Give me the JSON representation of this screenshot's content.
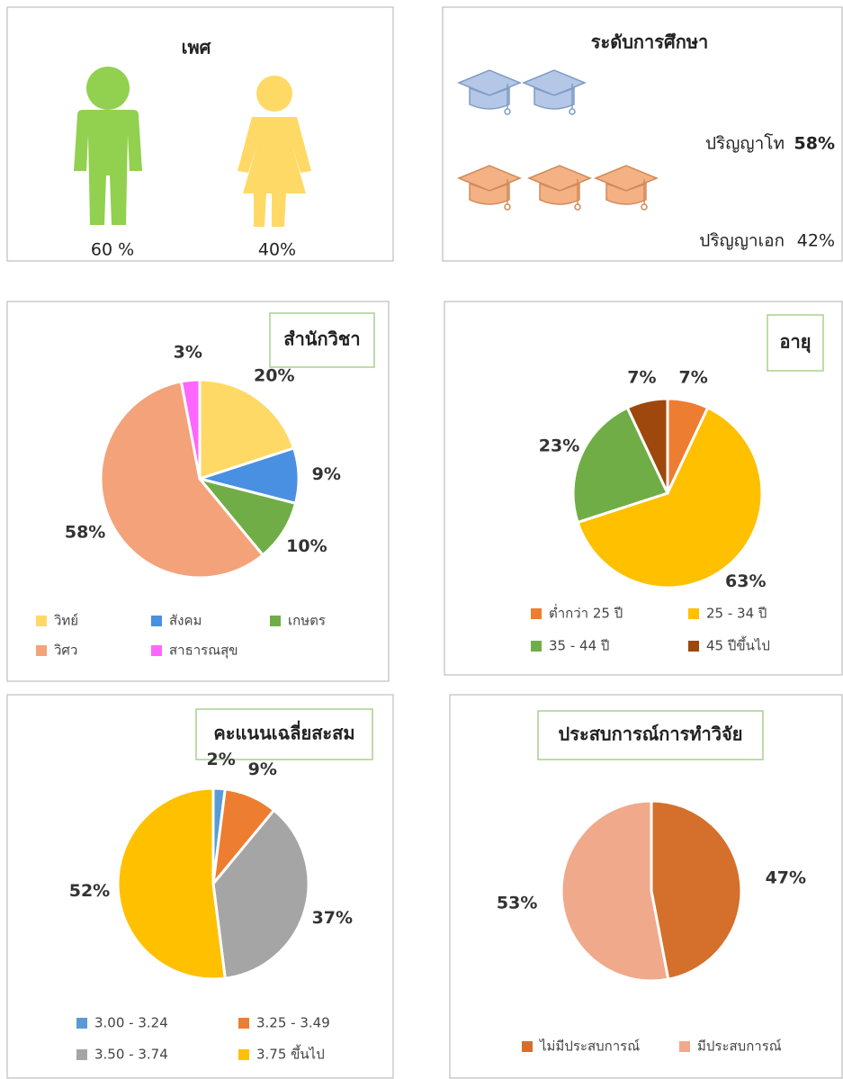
{
  "gender": {
    "title": "เพศ",
    "values": [
      60,
      40
    ],
    "value_labels": [
      "60 %",
      "40%"
    ],
    "colors": [
      "#92d050",
      "#ffd966"
    ]
  },
  "education": {
    "title": "ระดับการศึกษา",
    "categories": [
      "ปริญญาโท",
      "ปริญญาเอก"
    ],
    "values": [
      58,
      42
    ],
    "value_labels": [
      "58%",
      "42%"
    ],
    "colors": [
      "#b4c7e7",
      "#f4b183"
    ]
  },
  "chart_data": [
    {
      "type": "pie",
      "title": "สำนักวิชา",
      "categories": [
        "วิทย์",
        "สังคม",
        "เกษตร",
        "วิศว",
        "สาธารณสุข"
      ],
      "values": [
        20,
        9,
        10,
        58,
        3
      ],
      "value_labels": [
        "20%",
        "9%",
        "10%",
        "58%",
        "3%"
      ],
      "colors": [
        "#ffd966",
        "#4a90e2",
        "#70ad47",
        "#f4a27a",
        "#ff66ff"
      ]
    },
    {
      "type": "pie",
      "title": "อายุ",
      "categories": [
        "ต่ำกว่า 25 ปี",
        "25 - 34 ปี",
        "35 - 44 ปี",
        "45 ปีขึ้นไป"
      ],
      "values": [
        7,
        63,
        23,
        7
      ],
      "value_labels": [
        "7%",
        "63%",
        "23%",
        "7%"
      ],
      "colors": [
        "#ed7d31",
        "#ffc000",
        "#70ad47",
        "#9e480e"
      ]
    },
    {
      "type": "pie",
      "title": "คะแนนเฉลี่ยสะสม",
      "categories": [
        "3.00 - 3.24",
        "3.25 - 3.49",
        "3.50 - 3.74",
        "3.75 ขึ้นไป"
      ],
      "values": [
        2,
        9,
        37,
        52
      ],
      "value_labels": [
        "2%",
        "9%",
        "37%",
        "52%"
      ],
      "colors": [
        "#5b9bd5",
        "#ed7d31",
        "#a5a5a5",
        "#ffc000"
      ]
    },
    {
      "type": "pie",
      "title": "ประสบการณ์การทำวิจัย",
      "categories": [
        "ไม่มีประสบการณ์",
        "มีประสบการณ์"
      ],
      "values": [
        47,
        53
      ],
      "value_labels": [
        "47%",
        "53%"
      ],
      "colors": [
        "#d4702c",
        "#f0a98a"
      ]
    }
  ]
}
